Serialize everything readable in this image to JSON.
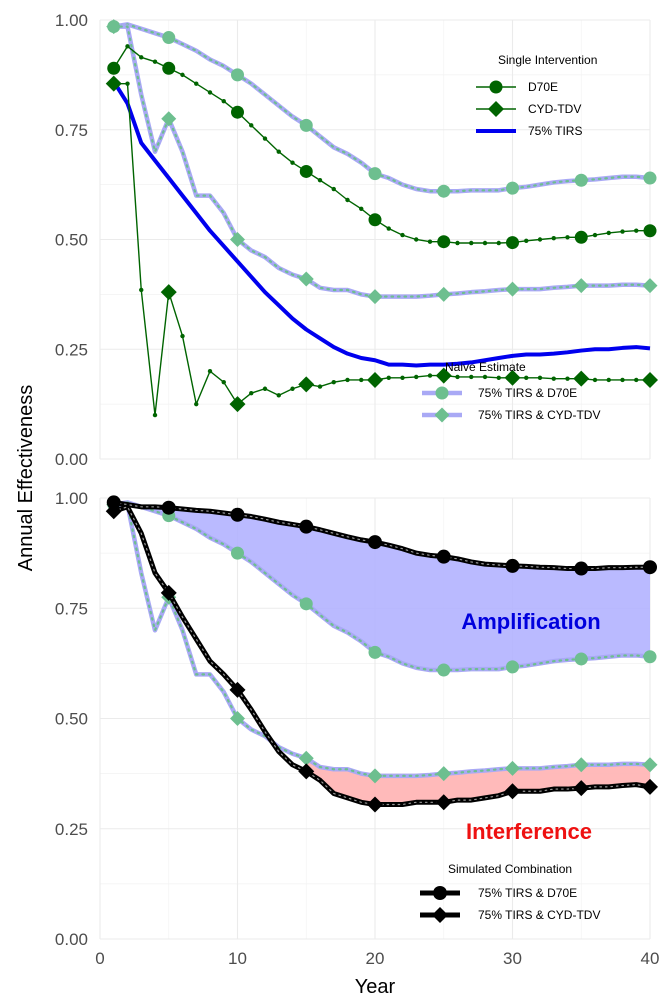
{
  "chart_data": [
    {
      "type": "line",
      "panel": "top",
      "ylabel": "Annual Effectiveness",
      "xlabel": "",
      "xlim": [
        0,
        40
      ],
      "ylim": [
        0,
        1
      ],
      "xticks": [
        0,
        10,
        20,
        30,
        40
      ],
      "yticks": [
        0.0,
        0.25,
        0.5,
        0.75,
        1.0
      ],
      "ytick_labels": [
        "0.00",
        "0.25",
        "0.50",
        "0.75",
        "1.00"
      ],
      "grid": true,
      "legends": [
        {
          "title": "Single Intervention",
          "placement": "top-right",
          "entries": [
            {
              "label": "D70E",
              "series": "D70E"
            },
            {
              "label": "CYD-TDV",
              "series": "CYD-TDV"
            },
            {
              "label": "75% TIRS",
              "series": "TIRS"
            }
          ]
        },
        {
          "title": "Naive Estimate",
          "placement": "bottom-right",
          "entries": [
            {
              "label": "75% TIRS & D70E",
              "series": "NAIVE_D70E"
            },
            {
              "label": "75% TIRS & CYD-TDV",
              "series": "NAIVE_CYD"
            }
          ]
        }
      ],
      "series": [
        {
          "key": "TIRS",
          "color": "#0000ee",
          "style": "thick-line",
          "x": [
            1,
            2,
            3,
            4,
            5,
            6,
            7,
            8,
            9,
            10,
            11,
            12,
            13,
            14,
            15,
            16,
            17,
            18,
            19,
            20,
            21,
            22,
            23,
            24,
            25,
            26,
            27,
            28,
            29,
            30,
            31,
            32,
            33,
            34,
            35,
            36,
            37,
            38,
            39,
            40
          ],
          "values": [
            0.86,
            0.81,
            0.72,
            0.68,
            0.64,
            0.6,
            0.56,
            0.52,
            0.485,
            0.45,
            0.415,
            0.38,
            0.35,
            0.32,
            0.295,
            0.275,
            0.255,
            0.24,
            0.23,
            0.225,
            0.215,
            0.215,
            0.213,
            0.215,
            0.215,
            0.217,
            0.22,
            0.225,
            0.23,
            0.235,
            0.238,
            0.238,
            0.24,
            0.243,
            0.247,
            0.25,
            0.25,
            0.253,
            0.255,
            0.252
          ]
        },
        {
          "key": "D70E",
          "color": "#006400",
          "style": "line-circle",
          "x": [
            1,
            2,
            3,
            4,
            5,
            6,
            7,
            8,
            9,
            10,
            11,
            12,
            13,
            14,
            15,
            16,
            17,
            18,
            19,
            20,
            21,
            22,
            23,
            24,
            25,
            26,
            27,
            28,
            29,
            30,
            31,
            32,
            33,
            34,
            35,
            36,
            37,
            38,
            39,
            40
          ],
          "values": [
            0.89,
            0.94,
            0.915,
            0.905,
            0.89,
            0.875,
            0.855,
            0.835,
            0.815,
            0.79,
            0.76,
            0.73,
            0.7,
            0.675,
            0.655,
            0.635,
            0.615,
            0.59,
            0.57,
            0.545,
            0.525,
            0.51,
            0.5,
            0.495,
            0.495,
            0.492,
            0.492,
            0.492,
            0.492,
            0.493,
            0.497,
            0.5,
            0.503,
            0.505,
            0.505,
            0.51,
            0.515,
            0.518,
            0.52,
            0.52
          ],
          "marker_x": [
            1,
            5,
            10,
            15,
            20,
            25,
            30,
            35,
            40
          ]
        },
        {
          "key": "CYD-TDV",
          "color": "#006400",
          "style": "line-diamond",
          "x": [
            1,
            2,
            3,
            4,
            5,
            6,
            7,
            8,
            9,
            10,
            11,
            12,
            13,
            14,
            15,
            16,
            17,
            18,
            19,
            20,
            21,
            22,
            23,
            24,
            25,
            26,
            27,
            28,
            29,
            30,
            31,
            32,
            33,
            34,
            35,
            36,
            37,
            38,
            39,
            40
          ],
          "values": [
            0.855,
            0.855,
            0.385,
            0.1,
            0.38,
            0.28,
            0.125,
            0.2,
            0.175,
            0.125,
            0.15,
            0.16,
            0.145,
            0.16,
            0.17,
            0.165,
            0.175,
            0.18,
            0.18,
            0.18,
            0.185,
            0.185,
            0.187,
            0.19,
            0.19,
            0.187,
            0.187,
            0.187,
            0.185,
            0.185,
            0.185,
            0.185,
            0.183,
            0.183,
            0.183,
            0.18,
            0.18,
            0.18,
            0.18,
            0.18
          ],
          "marker_x": [
            1,
            5,
            10,
            15,
            20,
            25,
            30,
            35,
            40
          ]
        },
        {
          "key": "NAIVE_D70E",
          "color": "#6dbf8f",
          "line_color": "#a9a9f5",
          "style": "naive-circle",
          "x": [
            1,
            2,
            3,
            4,
            5,
            6,
            7,
            8,
            9,
            10,
            11,
            12,
            13,
            14,
            15,
            16,
            17,
            18,
            19,
            20,
            21,
            22,
            23,
            24,
            25,
            26,
            27,
            28,
            29,
            30,
            31,
            32,
            33,
            34,
            35,
            36,
            37,
            38,
            39,
            40
          ],
          "values": [
            0.985,
            0.99,
            0.98,
            0.97,
            0.96,
            0.945,
            0.93,
            0.91,
            0.895,
            0.875,
            0.855,
            0.83,
            0.805,
            0.78,
            0.76,
            0.735,
            0.71,
            0.695,
            0.675,
            0.65,
            0.64,
            0.625,
            0.615,
            0.61,
            0.61,
            0.61,
            0.612,
            0.612,
            0.612,
            0.617,
            0.62,
            0.625,
            0.63,
            0.633,
            0.635,
            0.637,
            0.64,
            0.643,
            0.643,
            0.64
          ],
          "marker_x": [
            1,
            5,
            10,
            15,
            20,
            25,
            30,
            35,
            40
          ]
        },
        {
          "key": "NAIVE_CYD",
          "color": "#6dbf8f",
          "line_color": "#a9a9f5",
          "style": "naive-diamond",
          "x": [
            1,
            2,
            3,
            4,
            5,
            6,
            7,
            8,
            9,
            10,
            11,
            12,
            13,
            14,
            15,
            16,
            17,
            18,
            19,
            20,
            21,
            22,
            23,
            24,
            25,
            26,
            27,
            28,
            29,
            30,
            31,
            32,
            33,
            34,
            35,
            36,
            37,
            38,
            39,
            40
          ],
          "values": [
            0.985,
            0.985,
            0.83,
            0.7,
            0.775,
            0.7,
            0.6,
            0.6,
            0.56,
            0.5,
            0.475,
            0.46,
            0.435,
            0.42,
            0.41,
            0.39,
            0.385,
            0.385,
            0.375,
            0.37,
            0.37,
            0.37,
            0.37,
            0.372,
            0.375,
            0.377,
            0.38,
            0.382,
            0.385,
            0.387,
            0.387,
            0.387,
            0.39,
            0.392,
            0.395,
            0.395,
            0.395,
            0.397,
            0.397,
            0.395
          ],
          "marker_x": [
            1,
            5,
            10,
            15,
            20,
            25,
            30,
            35,
            40
          ]
        }
      ]
    },
    {
      "type": "line",
      "panel": "bottom",
      "ylabel": "Annual Effectiveness",
      "xlabel": "Year",
      "xlim": [
        0,
        40
      ],
      "ylim": [
        0,
        1
      ],
      "xticks": [
        0,
        10,
        20,
        30,
        40
      ],
      "xtick_labels": [
        "0",
        "10",
        "20",
        "30",
        "40"
      ],
      "yticks": [
        0.0,
        0.25,
        0.5,
        0.75,
        1.0
      ],
      "ytick_labels": [
        "0.00",
        "0.25",
        "0.50",
        "0.75",
        "1.00"
      ],
      "grid": true,
      "annotations": [
        {
          "text": "Amplification",
          "color": "#0000dd"
        },
        {
          "text": "Interference",
          "color": "#ee1111"
        }
      ],
      "legends": [
        {
          "title": "Simulated Combination",
          "placement": "bottom-right",
          "entries": [
            {
              "label": "75% TIRS & D70E",
              "series": "SIM_D70E"
            },
            {
              "label": "75% TIRS & CYD-TDV",
              "series": "SIM_CYD"
            }
          ]
        }
      ],
      "series": [
        {
          "key": "SIM_D70E",
          "color": "#000000",
          "style": "sim-circle",
          "x": [
            1,
            2,
            3,
            4,
            5,
            6,
            7,
            8,
            9,
            10,
            11,
            12,
            13,
            14,
            15,
            16,
            17,
            18,
            19,
            20,
            21,
            22,
            23,
            24,
            25,
            26,
            27,
            28,
            29,
            30,
            31,
            32,
            33,
            34,
            35,
            36,
            37,
            38,
            39,
            40
          ],
          "values": [
            0.99,
            0.985,
            0.98,
            0.98,
            0.978,
            0.975,
            0.972,
            0.97,
            0.966,
            0.962,
            0.958,
            0.952,
            0.945,
            0.94,
            0.935,
            0.928,
            0.92,
            0.912,
            0.905,
            0.9,
            0.893,
            0.885,
            0.875,
            0.87,
            0.867,
            0.862,
            0.855,
            0.85,
            0.848,
            0.846,
            0.845,
            0.843,
            0.842,
            0.84,
            0.84,
            0.84,
            0.842,
            0.842,
            0.843,
            0.843
          ],
          "marker_x": [
            1,
            5,
            10,
            15,
            20,
            25,
            30,
            35,
            40
          ]
        },
        {
          "key": "SIM_CYD",
          "color": "#000000",
          "style": "sim-diamond",
          "x": [
            1,
            2,
            3,
            4,
            5,
            6,
            7,
            8,
            9,
            10,
            11,
            12,
            13,
            14,
            15,
            16,
            17,
            18,
            19,
            20,
            21,
            22,
            23,
            24,
            25,
            26,
            27,
            28,
            29,
            30,
            31,
            32,
            33,
            34,
            35,
            36,
            37,
            38,
            39,
            40
          ],
          "values": [
            0.97,
            0.98,
            0.92,
            0.83,
            0.785,
            0.73,
            0.68,
            0.63,
            0.6,
            0.565,
            0.52,
            0.47,
            0.425,
            0.395,
            0.38,
            0.36,
            0.33,
            0.32,
            0.31,
            0.305,
            0.305,
            0.305,
            0.31,
            0.31,
            0.31,
            0.315,
            0.315,
            0.32,
            0.325,
            0.335,
            0.335,
            0.335,
            0.34,
            0.34,
            0.342,
            0.345,
            0.345,
            0.348,
            0.35,
            0.345
          ],
          "marker_x": [
            1,
            5,
            10,
            15,
            20,
            25,
            30,
            35,
            40
          ]
        },
        {
          "key": "NAIVE_D70E",
          "color": "#6dbf8f",
          "line_color": "#a9a9f5",
          "style": "naive-circle",
          "x": [
            1,
            2,
            3,
            4,
            5,
            6,
            7,
            8,
            9,
            10,
            11,
            12,
            13,
            14,
            15,
            16,
            17,
            18,
            19,
            20,
            21,
            22,
            23,
            24,
            25,
            26,
            27,
            28,
            29,
            30,
            31,
            32,
            33,
            34,
            35,
            36,
            37,
            38,
            39,
            40
          ],
          "values": [
            0.985,
            0.99,
            0.98,
            0.97,
            0.96,
            0.945,
            0.93,
            0.91,
            0.895,
            0.875,
            0.855,
            0.83,
            0.805,
            0.78,
            0.76,
            0.735,
            0.71,
            0.695,
            0.675,
            0.65,
            0.64,
            0.625,
            0.615,
            0.61,
            0.61,
            0.61,
            0.612,
            0.612,
            0.612,
            0.617,
            0.62,
            0.625,
            0.63,
            0.633,
            0.635,
            0.637,
            0.64,
            0.643,
            0.643,
            0.64
          ],
          "marker_x": [
            1,
            5,
            10,
            15,
            20,
            25,
            30,
            35,
            40
          ]
        },
        {
          "key": "NAIVE_CYD",
          "color": "#6dbf8f",
          "line_color": "#a9a9f5",
          "style": "naive-diamond",
          "x": [
            1,
            2,
            3,
            4,
            5,
            6,
            7,
            8,
            9,
            10,
            11,
            12,
            13,
            14,
            15,
            16,
            17,
            18,
            19,
            20,
            21,
            22,
            23,
            24,
            25,
            26,
            27,
            28,
            29,
            30,
            31,
            32,
            33,
            34,
            35,
            36,
            37,
            38,
            39,
            40
          ],
          "values": [
            0.985,
            0.985,
            0.83,
            0.7,
            0.775,
            0.7,
            0.6,
            0.6,
            0.56,
            0.5,
            0.475,
            0.46,
            0.435,
            0.42,
            0.41,
            0.39,
            0.385,
            0.385,
            0.375,
            0.37,
            0.37,
            0.37,
            0.37,
            0.372,
            0.375,
            0.377,
            0.38,
            0.382,
            0.385,
            0.387,
            0.387,
            0.387,
            0.39,
            0.392,
            0.395,
            0.395,
            0.395,
            0.397,
            0.397,
            0.395
          ],
          "marker_x": [
            1,
            5,
            10,
            15,
            20,
            25,
            30,
            35,
            40
          ]
        }
      ],
      "shaded_regions": [
        {
          "name": "Amplification",
          "between": [
            "SIM_D70E",
            "NAIVE_D70E"
          ],
          "color": "#b3b3ff"
        },
        {
          "name": "Interference",
          "between": [
            "NAIVE_CYD",
            "SIM_CYD"
          ],
          "from_x": 15,
          "color": "#ffb3b3"
        }
      ]
    }
  ]
}
